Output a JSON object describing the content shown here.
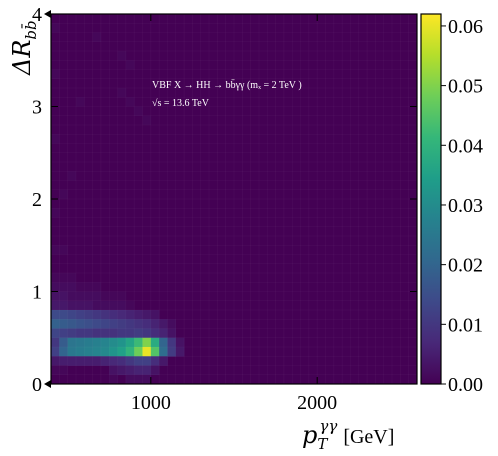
{
  "chart_data": {
    "type": "heatmap",
    "title": "",
    "xlabel": {
      "symbol": "p",
      "sub": "T",
      "sup": "γγ",
      "unit": "[GeV]"
    },
    "ylabel": {
      "symbol": "ΔR",
      "sub": "bb̄"
    },
    "xlim": [
      400,
      2600
    ],
    "ylim": [
      0,
      4
    ],
    "xticks": [
      1000,
      2000
    ],
    "yticks": [
      0,
      1,
      2,
      3,
      4
    ],
    "colorbar": {
      "range": [
        0,
        0.062
      ],
      "ticks": [
        "0.00",
        "0.01",
        "0.02",
        "0.03",
        "0.04",
        "0.05",
        "0.06"
      ],
      "colormap": [
        "#440154",
        "#482878",
        "#3e4989",
        "#31688e",
        "#26828e",
        "#1f9e89",
        "#35b779",
        "#6ece58",
        "#b5de2b",
        "#fde725"
      ]
    },
    "annotation": {
      "line1": "VBF X → HH → bb̄γγ (mₓ = 2 TeV )",
      "line2": "√s = 13.6 TeV"
    },
    "bin_width_x": 50,
    "bin_height_y": 0.1,
    "cells": [
      {
        "x": 400,
        "y": 0.8,
        "v": 0.004
      },
      {
        "x": 450,
        "y": 0.8,
        "v": 0.004
      },
      {
        "x": 500,
        "y": 0.8,
        "v": 0.003
      },
      {
        "x": 550,
        "y": 0.8,
        "v": 0.003
      },
      {
        "x": 600,
        "y": 0.8,
        "v": 0.003
      },
      {
        "x": 650,
        "y": 0.8,
        "v": 0.002
      },
      {
        "x": 700,
        "y": 0.8,
        "v": 0.002
      },
      {
        "x": 750,
        "y": 0.8,
        "v": 0.002
      },
      {
        "x": 800,
        "y": 0.8,
        "v": 0.002
      },
      {
        "x": 850,
        "y": 0.8,
        "v": 0.001
      },
      {
        "x": 400,
        "y": 0.7,
        "v": 0.014
      },
      {
        "x": 450,
        "y": 0.7,
        "v": 0.014
      },
      {
        "x": 500,
        "y": 0.7,
        "v": 0.013
      },
      {
        "x": 550,
        "y": 0.7,
        "v": 0.012
      },
      {
        "x": 600,
        "y": 0.7,
        "v": 0.011
      },
      {
        "x": 650,
        "y": 0.7,
        "v": 0.01
      },
      {
        "x": 700,
        "y": 0.7,
        "v": 0.009
      },
      {
        "x": 750,
        "y": 0.7,
        "v": 0.008
      },
      {
        "x": 800,
        "y": 0.7,
        "v": 0.007
      },
      {
        "x": 850,
        "y": 0.7,
        "v": 0.006
      },
      {
        "x": 900,
        "y": 0.7,
        "v": 0.005
      },
      {
        "x": 950,
        "y": 0.7,
        "v": 0.004
      },
      {
        "x": 1000,
        "y": 0.7,
        "v": 0.003
      },
      {
        "x": 400,
        "y": 0.6,
        "v": 0.019
      },
      {
        "x": 450,
        "y": 0.6,
        "v": 0.018
      },
      {
        "x": 500,
        "y": 0.6,
        "v": 0.017
      },
      {
        "x": 550,
        "y": 0.6,
        "v": 0.016
      },
      {
        "x": 600,
        "y": 0.6,
        "v": 0.015
      },
      {
        "x": 650,
        "y": 0.6,
        "v": 0.014
      },
      {
        "x": 700,
        "y": 0.6,
        "v": 0.013
      },
      {
        "x": 750,
        "y": 0.6,
        "v": 0.012
      },
      {
        "x": 800,
        "y": 0.6,
        "v": 0.011
      },
      {
        "x": 850,
        "y": 0.6,
        "v": 0.01
      },
      {
        "x": 900,
        "y": 0.6,
        "v": 0.009
      },
      {
        "x": 950,
        "y": 0.6,
        "v": 0.008
      },
      {
        "x": 1000,
        "y": 0.6,
        "v": 0.006
      },
      {
        "x": 1050,
        "y": 0.6,
        "v": 0.004
      },
      {
        "x": 1100,
        "y": 0.6,
        "v": 0.002
      },
      {
        "x": 400,
        "y": 0.5,
        "v": 0.013
      },
      {
        "x": 450,
        "y": 0.5,
        "v": 0.012
      },
      {
        "x": 500,
        "y": 0.5,
        "v": 0.011
      },
      {
        "x": 550,
        "y": 0.5,
        "v": 0.01
      },
      {
        "x": 600,
        "y": 0.5,
        "v": 0.01
      },
      {
        "x": 650,
        "y": 0.5,
        "v": 0.009
      },
      {
        "x": 700,
        "y": 0.5,
        "v": 0.009
      },
      {
        "x": 750,
        "y": 0.5,
        "v": 0.009
      },
      {
        "x": 800,
        "y": 0.5,
        "v": 0.01
      },
      {
        "x": 850,
        "y": 0.5,
        "v": 0.01
      },
      {
        "x": 900,
        "y": 0.5,
        "v": 0.011
      },
      {
        "x": 950,
        "y": 0.5,
        "v": 0.01
      },
      {
        "x": 1000,
        "y": 0.5,
        "v": 0.008
      },
      {
        "x": 1050,
        "y": 0.5,
        "v": 0.006
      },
      {
        "x": 1100,
        "y": 0.5,
        "v": 0.003
      },
      {
        "x": 400,
        "y": 0.4,
        "v": 0.01
      },
      {
        "x": 450,
        "y": 0.4,
        "v": 0.018
      },
      {
        "x": 500,
        "y": 0.4,
        "v": 0.024
      },
      {
        "x": 550,
        "y": 0.4,
        "v": 0.025
      },
      {
        "x": 600,
        "y": 0.4,
        "v": 0.026
      },
      {
        "x": 650,
        "y": 0.4,
        "v": 0.027
      },
      {
        "x": 700,
        "y": 0.4,
        "v": 0.028
      },
      {
        "x": 750,
        "y": 0.4,
        "v": 0.03
      },
      {
        "x": 800,
        "y": 0.4,
        "v": 0.032
      },
      {
        "x": 850,
        "y": 0.4,
        "v": 0.036
      },
      {
        "x": 900,
        "y": 0.4,
        "v": 0.042
      },
      {
        "x": 950,
        "y": 0.4,
        "v": 0.05
      },
      {
        "x": 1000,
        "y": 0.4,
        "v": 0.038
      },
      {
        "x": 1050,
        "y": 0.4,
        "v": 0.02
      },
      {
        "x": 1100,
        "y": 0.4,
        "v": 0.01
      },
      {
        "x": 1150,
        "y": 0.4,
        "v": 0.003
      },
      {
        "x": 400,
        "y": 0.3,
        "v": 0.012
      },
      {
        "x": 450,
        "y": 0.3,
        "v": 0.02
      },
      {
        "x": 500,
        "y": 0.3,
        "v": 0.025
      },
      {
        "x": 550,
        "y": 0.3,
        "v": 0.026
      },
      {
        "x": 600,
        "y": 0.3,
        "v": 0.027
      },
      {
        "x": 650,
        "y": 0.3,
        "v": 0.028
      },
      {
        "x": 700,
        "y": 0.3,
        "v": 0.029
      },
      {
        "x": 750,
        "y": 0.3,
        "v": 0.032
      },
      {
        "x": 800,
        "y": 0.3,
        "v": 0.035
      },
      {
        "x": 850,
        "y": 0.3,
        "v": 0.04
      },
      {
        "x": 900,
        "y": 0.3,
        "v": 0.048
      },
      {
        "x": 950,
        "y": 0.3,
        "v": 0.06
      },
      {
        "x": 1000,
        "y": 0.3,
        "v": 0.045
      },
      {
        "x": 1050,
        "y": 0.3,
        "v": 0.022
      },
      {
        "x": 1100,
        "y": 0.3,
        "v": 0.011
      },
      {
        "x": 1150,
        "y": 0.3,
        "v": 0.004
      },
      {
        "x": 400,
        "y": 0.2,
        "v": 0.004
      },
      {
        "x": 450,
        "y": 0.2,
        "v": 0.005
      },
      {
        "x": 500,
        "y": 0.2,
        "v": 0.005
      },
      {
        "x": 550,
        "y": 0.2,
        "v": 0.005
      },
      {
        "x": 600,
        "y": 0.2,
        "v": 0.005
      },
      {
        "x": 650,
        "y": 0.2,
        "v": 0.005
      },
      {
        "x": 700,
        "y": 0.2,
        "v": 0.006
      },
      {
        "x": 750,
        "y": 0.2,
        "v": 0.007
      },
      {
        "x": 800,
        "y": 0.2,
        "v": 0.008
      },
      {
        "x": 850,
        "y": 0.2,
        "v": 0.01
      },
      {
        "x": 900,
        "y": 0.2,
        "v": 0.012
      },
      {
        "x": 950,
        "y": 0.2,
        "v": 0.012
      },
      {
        "x": 1000,
        "y": 0.2,
        "v": 0.008
      },
      {
        "x": 1050,
        "y": 0.2,
        "v": 0.004
      },
      {
        "x": 400,
        "y": 0.1,
        "v": 0.001
      },
      {
        "x": 450,
        "y": 0.1,
        "v": 0.001
      },
      {
        "x": 750,
        "y": 0.1,
        "v": 0.003
      },
      {
        "x": 800,
        "y": 0.1,
        "v": 0.004
      },
      {
        "x": 850,
        "y": 0.1,
        "v": 0.005
      },
      {
        "x": 900,
        "y": 0.1,
        "v": 0.006
      },
      {
        "x": 950,
        "y": 0.1,
        "v": 0.006
      },
      {
        "x": 1000,
        "y": 0.1,
        "v": 0.003
      },
      {
        "x": 750,
        "y": 0.0,
        "v": 0.001
      },
      {
        "x": 850,
        "y": 0.0,
        "v": 0.002
      },
      {
        "x": 900,
        "y": 0.0,
        "v": 0.002
      },
      {
        "x": 950,
        "y": 0.0,
        "v": 0.002
      },
      {
        "x": 400,
        "y": 1.0,
        "v": 0.002
      },
      {
        "x": 450,
        "y": 1.0,
        "v": 0.002
      },
      {
        "x": 500,
        "y": 1.0,
        "v": 0.002
      },
      {
        "x": 550,
        "y": 1.0,
        "v": 0.001
      },
      {
        "x": 600,
        "y": 1.0,
        "v": 0.001
      },
      {
        "x": 650,
        "y": 1.0,
        "v": 0.001
      },
      {
        "x": 400,
        "y": 0.9,
        "v": 0.003
      },
      {
        "x": 450,
        "y": 0.9,
        "v": 0.003
      },
      {
        "x": 500,
        "y": 0.9,
        "v": 0.002
      },
      {
        "x": 550,
        "y": 0.9,
        "v": 0.002
      },
      {
        "x": 600,
        "y": 0.9,
        "v": 0.002
      },
      {
        "x": 650,
        "y": 0.9,
        "v": 0.002
      },
      {
        "x": 700,
        "y": 0.9,
        "v": 0.001
      },
      {
        "x": 750,
        "y": 0.9,
        "v": 0.001
      },
      {
        "x": 800,
        "y": 0.9,
        "v": 0.001
      },
      {
        "x": 400,
        "y": 1.1,
        "v": 0.001
      },
      {
        "x": 450,
        "y": 1.1,
        "v": 0.001
      },
      {
        "x": 500,
        "y": 1.1,
        "v": 0.001
      },
      {
        "x": 400,
        "y": 1.4,
        "v": 0.001
      },
      {
        "x": 450,
        "y": 1.4,
        "v": 0.001
      },
      {
        "x": 400,
        "y": 1.8,
        "v": 0.001
      },
      {
        "x": 450,
        "y": 2.0,
        "v": 0.001
      },
      {
        "x": 500,
        "y": 2.2,
        "v": 0.001
      },
      {
        "x": 400,
        "y": 2.6,
        "v": 0.001
      },
      {
        "x": 550,
        "y": 3.0,
        "v": 0.001
      },
      {
        "x": 400,
        "y": 3.3,
        "v": 0.001
      },
      {
        "x": 800,
        "y": 3.1,
        "v": 0.001
      },
      {
        "x": 850,
        "y": 3.0,
        "v": 0.001
      },
      {
        "x": 900,
        "y": 2.9,
        "v": 0.001
      },
      {
        "x": 950,
        "y": 2.8,
        "v": 0.001
      },
      {
        "x": 800,
        "y": 3.5,
        "v": 0.001
      },
      {
        "x": 850,
        "y": 3.4,
        "v": 0.001
      },
      {
        "x": 400,
        "y": 3.8,
        "v": 0.001
      },
      {
        "x": 650,
        "y": 3.7,
        "v": 0.001
      }
    ]
  }
}
